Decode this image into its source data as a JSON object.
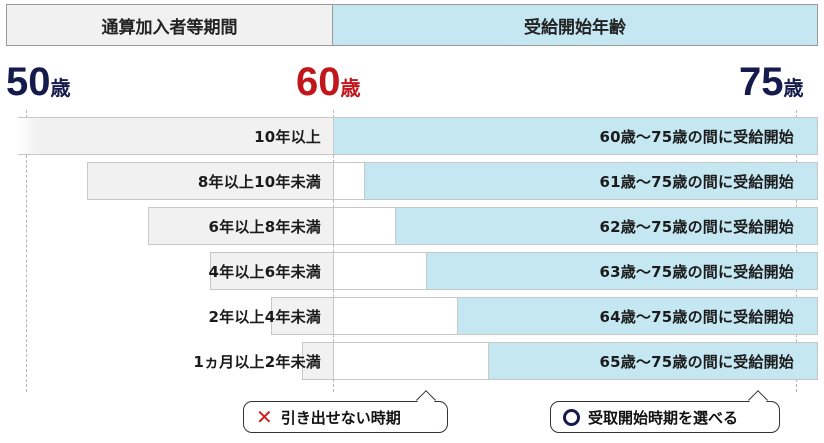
{
  "header": {
    "left": "通算加入者等期間",
    "right": "受給開始年齢"
  },
  "ages": [
    {
      "num": "50",
      "unit": "歳"
    },
    {
      "num": "60",
      "unit": "歳"
    },
    {
      "num": "75",
      "unit": "歳"
    }
  ],
  "rows": [
    {
      "period": "10年以上",
      "range": "60歳～75歳の間に受給開始"
    },
    {
      "period": "8年以上10年未満",
      "range": "61歳～75歳の間に受給開始"
    },
    {
      "period": "6年以上8年未満",
      "range": "62歳～75歳の間に受給開始"
    },
    {
      "period": "4年以上6年未満",
      "range": "63歳～75歳の間に受給開始"
    },
    {
      "period": "2年以上4年未満",
      "range": "64歳～75歳の間に受給開始"
    },
    {
      "period": "1ヵ月以上2年未満",
      "range": "65歳～75歳の間に受給開始"
    }
  ],
  "legend": {
    "ng_mark": "✕",
    "ng_text": "引き出せない時期",
    "ok_text": "受取開始時期を選べる"
  },
  "colors": {
    "blue_fill": "#c4e7f1",
    "gray_fill": "#f1f1f1",
    "navy": "#151b4c",
    "red": "#c0161c"
  }
}
